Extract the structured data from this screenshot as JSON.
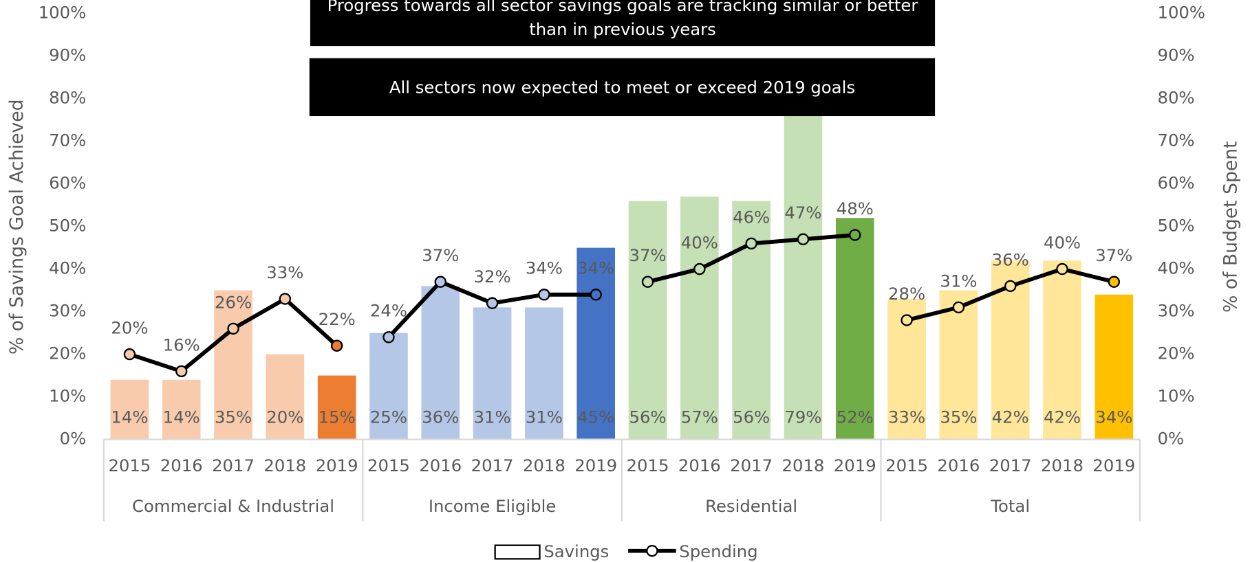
{
  "chart_data": {
    "type": "bar",
    "ylabel": "% of Savings Goal Achieved",
    "y2label": "% of Budget Spent",
    "ylim": [
      0,
      100
    ],
    "yticks": [
      {
        "value": 0,
        "label": "0%"
      },
      {
        "value": 10,
        "label": "10%"
      },
      {
        "value": 20,
        "label": "20%"
      },
      {
        "value": 30,
        "label": "30%"
      },
      {
        "value": 40,
        "label": "40%"
      },
      {
        "value": 50,
        "label": "50%"
      },
      {
        "value": 60,
        "label": "60%"
      },
      {
        "value": 70,
        "label": "70%"
      },
      {
        "value": 80,
        "label": "80%"
      },
      {
        "value": 90,
        "label": "90%"
      },
      {
        "value": 100,
        "label": "100%"
      }
    ],
    "y2lim": [
      0,
      100
    ],
    "y2ticks": [
      {
        "value": 0,
        "label": "0%"
      },
      {
        "value": 10,
        "label": "10%"
      },
      {
        "value": 20,
        "label": "20%"
      },
      {
        "value": 30,
        "label": "30%"
      },
      {
        "value": 40,
        "label": "40%"
      },
      {
        "value": 50,
        "label": "50%"
      },
      {
        "value": 60,
        "label": "60%"
      },
      {
        "value": 70,
        "label": "70%"
      },
      {
        "value": 80,
        "label": "80%"
      },
      {
        "value": 90,
        "label": "90%"
      },
      {
        "value": 100,
        "label": "100%"
      }
    ],
    "legend": [
      "Savings",
      "Spending"
    ],
    "line_color": "#000000",
    "annotations": [
      "Progress towards all sector savings goals are tracking similar or better than in previous years",
      "All sectors now expected to meet or exceed 2019 goals"
    ],
    "groups": [
      {
        "name": "Commercial & Industrial",
        "categories": [
          "2015",
          "2016",
          "2017",
          "2018",
          "2019"
        ],
        "savings": [
          14,
          14,
          35,
          20,
          15
        ],
        "savings_labels": [
          "14%",
          "14%",
          "35%",
          "20%",
          "15%"
        ],
        "spending": [
          20,
          16,
          26,
          33,
          22
        ],
        "spending_labels": [
          "20%",
          "16%",
          "26%",
          "33%",
          "22%"
        ],
        "colors": [
          "#f8cbad",
          "#f8cbad",
          "#f8cbad",
          "#f8cbad",
          "#ed7d31"
        ]
      },
      {
        "name": "Income Eligible",
        "categories": [
          "2015",
          "2016",
          "2017",
          "2018",
          "2019"
        ],
        "savings": [
          25,
          36,
          31,
          31,
          45
        ],
        "savings_labels": [
          "25%",
          "36%",
          "31%",
          "31%",
          "45%"
        ],
        "spending": [
          24,
          37,
          32,
          34,
          34
        ],
        "spending_labels": [
          "24%",
          "37%",
          "32%",
          "34%",
          "34%"
        ],
        "colors": [
          "#b4c7e7",
          "#b4c7e7",
          "#b4c7e7",
          "#b4c7e7",
          "#4472c4"
        ]
      },
      {
        "name": "Residential",
        "categories": [
          "2015",
          "2016",
          "2017",
          "2018",
          "2019"
        ],
        "savings": [
          56,
          57,
          56,
          79,
          52
        ],
        "savings_labels": [
          "56%",
          "57%",
          "56%",
          "79%",
          "52%"
        ],
        "spending": [
          37,
          40,
          46,
          47,
          48
        ],
        "spending_labels": [
          "37%",
          "40%",
          "46%",
          "47%",
          "48%"
        ],
        "colors": [
          "#c5e0b4",
          "#c5e0b4",
          "#c5e0b4",
          "#c5e0b4",
          "#70ad47"
        ]
      },
      {
        "name": "Total",
        "categories": [
          "2015",
          "2016",
          "2017",
          "2018",
          "2019"
        ],
        "savings": [
          33,
          35,
          42,
          42,
          34
        ],
        "savings_labels": [
          "33%",
          "35%",
          "42%",
          "42%",
          "34%"
        ],
        "spending": [
          28,
          31,
          36,
          40,
          37
        ],
        "spending_labels": [
          "28%",
          "31%",
          "36%",
          "40%",
          "37%"
        ],
        "colors": [
          "#ffe699",
          "#ffe699",
          "#ffe699",
          "#ffe699",
          "#ffc000"
        ]
      }
    ]
  }
}
